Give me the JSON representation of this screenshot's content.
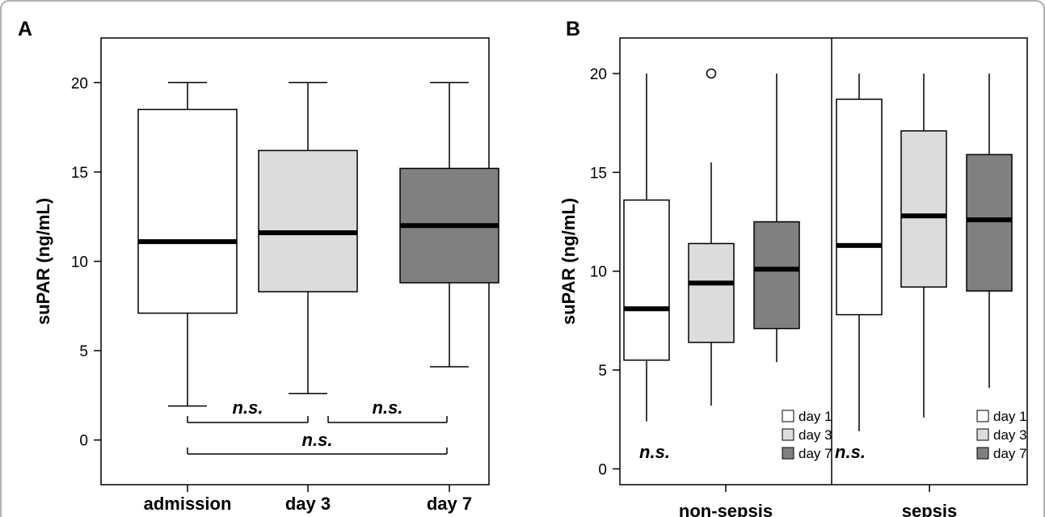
{
  "colors": {
    "day1": "#ffffff",
    "day3": "#dcdcdc",
    "day7": "#808080",
    "line": "#000000"
  },
  "chart_data": [
    {
      "panel": "A",
      "type": "boxplot",
      "ylabel": "suPAR (ng/mL)",
      "ylim": [
        -2.5,
        22.5
      ],
      "yticks": [
        0,
        5,
        10,
        15,
        20
      ],
      "categories": [
        "admission",
        "day 3",
        "day 7"
      ],
      "boxes": [
        {
          "category": "admission",
          "whisker_low": 1.9,
          "q1": 7.1,
          "median": 11.1,
          "q3": 18.5,
          "whisker_high": 20.0,
          "color_key": "day1"
        },
        {
          "category": "day 3",
          "whisker_low": 2.6,
          "q1": 8.3,
          "median": 11.6,
          "q3": 16.2,
          "whisker_high": 20.0,
          "color_key": "day3"
        },
        {
          "category": "day 7",
          "whisker_low": 4.1,
          "q1": 8.8,
          "median": 12.0,
          "q3": 15.2,
          "whisker_high": 20.0,
          "color_key": "day7"
        }
      ],
      "annotations": [
        {
          "text": "n.s.",
          "from": "admission",
          "to": "day 3"
        },
        {
          "text": "n.s.",
          "from": "day 3",
          "to": "day 7"
        },
        {
          "text": "n.s.",
          "from": "admission",
          "to": "day 7"
        }
      ]
    },
    {
      "panel": "B",
      "type": "boxplot",
      "ylabel": "suPAR (ng/mL)",
      "ylim": [
        -0.8,
        21.8
      ],
      "yticks": [
        0,
        5,
        10,
        15,
        20
      ],
      "groups": [
        {
          "name": "non-sepsis",
          "annotation": "n.s.",
          "boxes": [
            {
              "series": "day 1",
              "whisker_low": 2.4,
              "q1": 5.5,
              "median": 8.1,
              "q3": 13.6,
              "whisker_high": 20.0,
              "outliers": []
            },
            {
              "series": "day 3",
              "whisker_low": 3.2,
              "q1": 6.4,
              "median": 9.4,
              "q3": 11.4,
              "whisker_high": 15.5,
              "outliers": [
                20.0
              ]
            },
            {
              "series": "day 7",
              "whisker_low": 5.4,
              "q1": 7.1,
              "median": 10.1,
              "q3": 12.5,
              "whisker_high": 20.0,
              "outliers": []
            }
          ]
        },
        {
          "name": "sepsis",
          "annotation": "n.s.",
          "boxes": [
            {
              "series": "day 1",
              "whisker_low": 1.9,
              "q1": 7.8,
              "median": 11.3,
              "q3": 18.7,
              "whisker_high": 20.0,
              "outliers": []
            },
            {
              "series": "day 3",
              "whisker_low": 2.6,
              "q1": 9.2,
              "median": 12.8,
              "q3": 17.1,
              "whisker_high": 20.0,
              "outliers": []
            },
            {
              "series": "day 7",
              "whisker_low": 4.1,
              "q1": 9.0,
              "median": 12.6,
              "q3": 15.9,
              "whisker_high": 20.0,
              "outliers": []
            }
          ]
        }
      ],
      "legend": [
        {
          "label": "day 1",
          "color_key": "day1"
        },
        {
          "label": "day 3",
          "color_key": "day3"
        },
        {
          "label": "day 7",
          "color_key": "day7"
        }
      ],
      "legend_position": "bottom-right of each group"
    }
  ]
}
